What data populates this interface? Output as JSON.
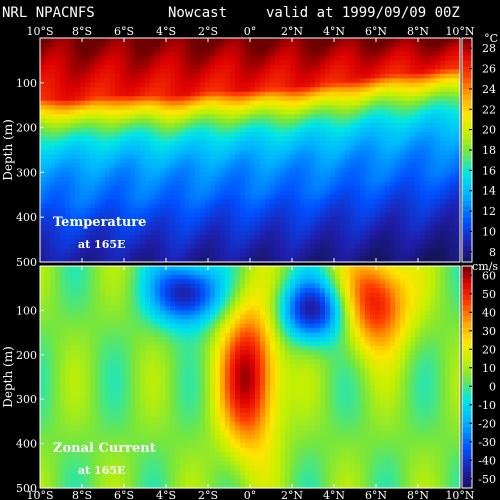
{
  "header": {
    "source": "NRL NPACNFS",
    "product": "Nowcast",
    "valid": "valid at 1999/09/09 00Z"
  },
  "chart_data": [
    {
      "type": "heatmap",
      "label": "Temperature",
      "sublabel": "at 165E",
      "unit": "°C",
      "ylabel": "Depth (m)",
      "x_ticks": [
        "10°S",
        "8°S",
        "6°S",
        "4°S",
        "2°S",
        "0°",
        "2°N",
        "4°N",
        "6°N",
        "8°N",
        "10°N"
      ],
      "xlim": [
        -10,
        10
      ],
      "y_ticks": [
        "100",
        "200",
        "300",
        "400",
        "500"
      ],
      "ylim": [
        0,
        500
      ],
      "colorbar": {
        "ticks": [
          "8",
          "10",
          "12",
          "14",
          "16",
          "18",
          "20",
          "22",
          "24",
          "26",
          "28"
        ],
        "range": [
          7,
          29
        ]
      },
      "thermocline_depth": [
        {
          "lat": -10,
          "depth": 215
        },
        {
          "lat": -8,
          "depth": 215
        },
        {
          "lat": -6,
          "depth": 205
        },
        {
          "lat": -4,
          "depth": 210
        },
        {
          "lat": -2,
          "depth": 200
        },
        {
          "lat": 0,
          "depth": 195
        },
        {
          "lat": 2,
          "depth": 190
        },
        {
          "lat": 4,
          "depth": 180
        },
        {
          "lat": 6,
          "depth": 165
        },
        {
          "lat": 8,
          "depth": 155
        },
        {
          "lat": 10,
          "depth": 145
        }
      ]
    },
    {
      "type": "heatmap",
      "label": "Zonal Current",
      "sublabel": "at 165E",
      "unit": "cm/s",
      "ylabel": "Depth (m)",
      "x_ticks": [
        "10°S",
        "8°S",
        "6°S",
        "4°S",
        "2°S",
        "0°",
        "2°N",
        "4°N",
        "6°N",
        "8°N",
        "10°N"
      ],
      "xlim": [
        -10,
        10
      ],
      "y_ticks": [
        "100",
        "200",
        "300",
        "400",
        "500"
      ],
      "ylim": [
        0,
        500
      ],
      "colorbar": {
        "ticks": [
          "-50",
          "-40",
          "-30",
          "-20",
          "-10",
          "0",
          "10",
          "20",
          "30",
          "40",
          "50",
          "60"
        ],
        "range": [
          -55,
          65
        ]
      },
      "features": [
        {
          "name": "eastward equatorial undercurrent",
          "lat": 0,
          "depth": 250,
          "value": 60
        },
        {
          "name": "eastward countercurrent",
          "lat": 6,
          "depth": 80,
          "value": 55
        },
        {
          "name": "westward surface flow",
          "lat": -3,
          "depth": 60,
          "value": -50
        },
        {
          "name": "westward subsurface flow",
          "lat": 3,
          "depth": 100,
          "value": -45
        }
      ]
    }
  ]
}
